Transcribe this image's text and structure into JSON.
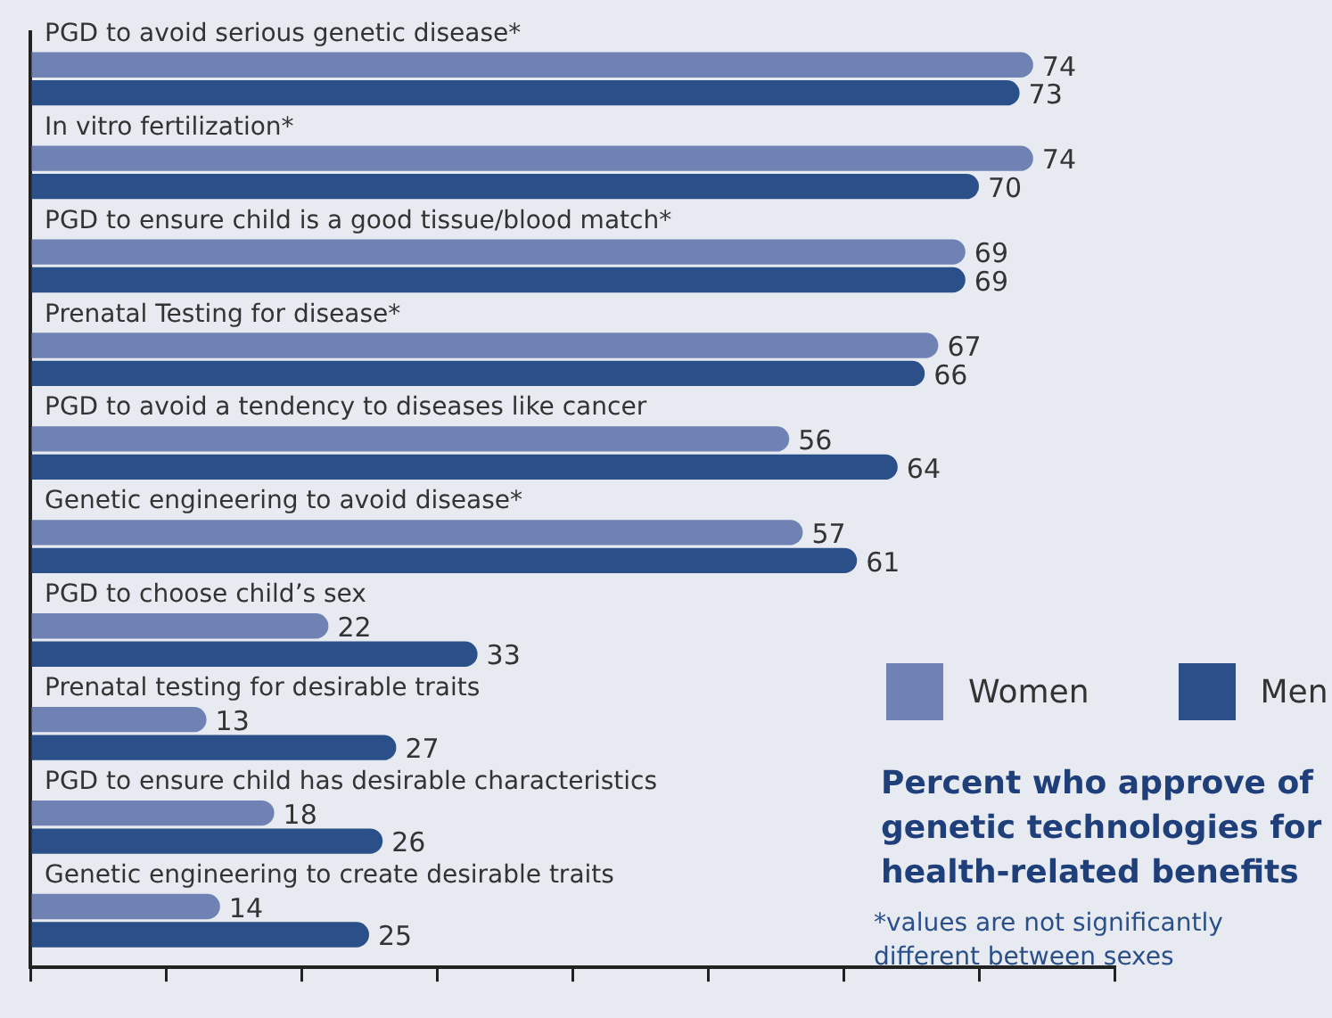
{
  "chart_data": {
    "type": "bar",
    "orientation": "horizontal",
    "title": "Percent who approve of genetic technologies for health-related benefits",
    "annotations": [
      "*values are not significantly different between sexes"
    ],
    "categories": [
      "PGD to avoid serious genetic disease*",
      "In vitro fertilization*",
      "PGD to ensure child is a good tissue/blood match*",
      "Prenatal Testing for disease*",
      "PGD to avoid a tendency to diseases like cancer",
      "Genetic engineering to avoid disease*",
      "PGD to choose child’s sex",
      "Prenatal testing for desirable traits",
      "PGD to ensure child has desirable characteristics",
      "Genetic engineering to create desirable traits"
    ],
    "series": [
      {
        "name": "Women",
        "color": "#6f82b3",
        "values": [
          74,
          74,
          69,
          67,
          56,
          57,
          22,
          13,
          18,
          14
        ]
      },
      {
        "name": "Men",
        "color": "#2b5089",
        "values": [
          73,
          70,
          69,
          66,
          64,
          61,
          33,
          27,
          26,
          25
        ]
      }
    ],
    "xlim": [
      0,
      80
    ],
    "xticks": [
      {
        "value": 0,
        "label": null
      },
      {
        "value": 10,
        "label": null
      },
      {
        "value": 20,
        "label": null
      },
      {
        "value": 30,
        "label": null
      },
      {
        "value": 40,
        "label": null
      },
      {
        "value": 50,
        "label": null
      },
      {
        "value": 60,
        "label": null
      },
      {
        "value": 70,
        "label": null
      },
      {
        "value": 80,
        "label": null
      }
    ],
    "grid": false,
    "legend": "right",
    "data_labels": true
  }
}
